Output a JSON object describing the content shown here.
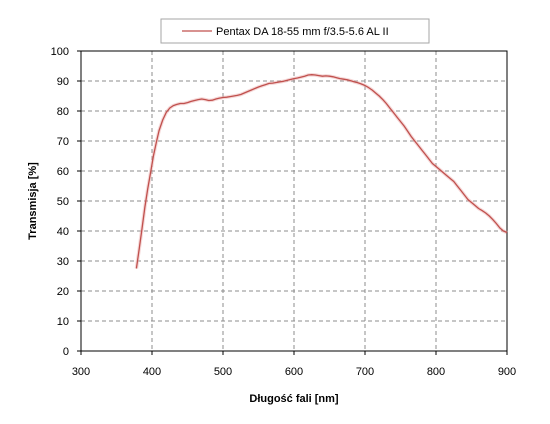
{
  "chart_data": {
    "type": "line",
    "xlabel": "Długość fali [nm]",
    "ylabel": "Transmisja [%]",
    "xlim": [
      300,
      900
    ],
    "ylim": [
      0,
      100
    ],
    "x_ticks": [
      300,
      400,
      500,
      600,
      700,
      800,
      900
    ],
    "y_ticks": [
      0,
      10,
      20,
      30,
      40,
      50,
      60,
      70,
      80,
      90,
      100
    ],
    "grid": "dashed",
    "legend_position": "top",
    "series": [
      {
        "name": "Pentax DA 18-55 mm  f/3.5-5.6 AL II",
        "color": "#c0504d",
        "x": [
          378,
          382,
          386,
          390,
          394,
          398,
          402,
          406,
          410,
          415,
          420,
          425,
          430,
          435,
          440,
          445,
          450,
          455,
          460,
          465,
          470,
          475,
          480,
          485,
          490,
          495,
          500,
          505,
          510,
          515,
          520,
          525,
          530,
          535,
          540,
          545,
          550,
          555,
          560,
          565,
          570,
          575,
          580,
          585,
          590,
          595,
          600,
          605,
          610,
          615,
          620,
          625,
          630,
          635,
          640,
          645,
          650,
          655,
          660,
          665,
          670,
          675,
          680,
          685,
          690,
          695,
          700,
          705,
          710,
          715,
          720,
          725,
          730,
          735,
          740,
          745,
          750,
          755,
          760,
          765,
          770,
          775,
          780,
          785,
          790,
          795,
          800,
          805,
          810,
          815,
          820,
          825,
          830,
          835,
          840,
          845,
          850,
          855,
          860,
          865,
          870,
          875,
          880,
          885,
          890,
          895,
          900
        ],
        "y": [
          27.5,
          34,
          41,
          48,
          54,
          59.5,
          65,
          69.5,
          73.5,
          77,
          79.5,
          81,
          81.8,
          82.2,
          82.5,
          82.5,
          82.8,
          83.2,
          83.5,
          83.8,
          84,
          83.8,
          83.5,
          83.6,
          84,
          84.3,
          84.5,
          84.6,
          84.8,
          85,
          85.2,
          85.5,
          86,
          86.5,
          87,
          87.5,
          88,
          88.4,
          88.8,
          89.2,
          89.3,
          89.5,
          89.7,
          89.9,
          90.2,
          90.5,
          90.8,
          91,
          91.3,
          91.6,
          92,
          92.1,
          92,
          91.8,
          91.6,
          91.7,
          91.6,
          91.4,
          91.1,
          90.8,
          90.6,
          90.4,
          90.1,
          89.7,
          89.4,
          89,
          88.5,
          87.8,
          87,
          86,
          85,
          83.8,
          82.5,
          81,
          79.5,
          78,
          76.5,
          75,
          73.3,
          71.5,
          70,
          68.5,
          67,
          65.5,
          64,
          62.5,
          61.5,
          60.5,
          59.5,
          58.5,
          57.5,
          56.5,
          55,
          53.5,
          52,
          50.5,
          49.5,
          48.5,
          47.5,
          46.8,
          46,
          45,
          43.8,
          42.5,
          41,
          40,
          39.5
        ]
      }
    ]
  }
}
